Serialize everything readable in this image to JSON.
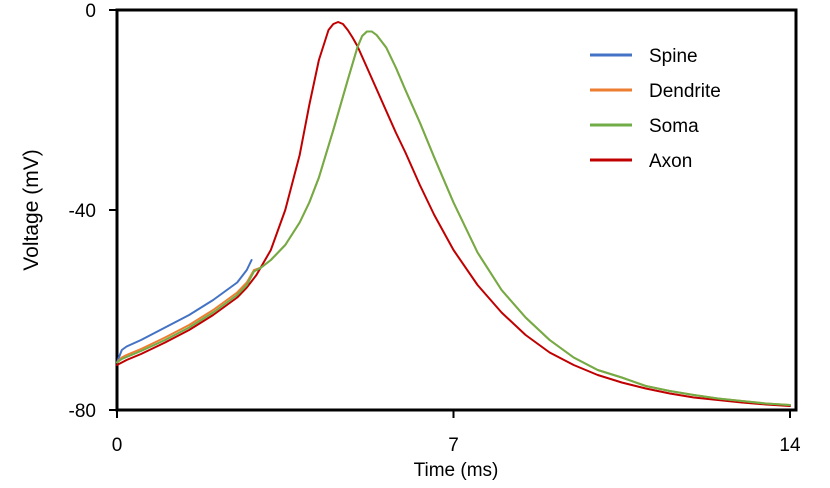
{
  "chart_data": {
    "type": "line",
    "title": "",
    "xlabel": "Time (ms)",
    "ylabel": "Voltage (mV)",
    "xlim": [
      0,
      14
    ],
    "ylim": [
      -80,
      0
    ],
    "xticks": [
      "0",
      "7",
      "14"
    ],
    "yticks": [
      "0",
      "-40",
      "-80"
    ],
    "grid": false,
    "legend_position": "top-right",
    "series": [
      {
        "name": "Spine",
        "color": "#4472C4",
        "x": [
          0.0,
          0.1,
          0.2,
          0.5,
          1.0,
          1.5,
          2.0,
          2.5,
          2.7,
          2.8
        ],
        "y": [
          -70.5,
          -68.0,
          -67.3,
          -66.0,
          -63.5,
          -61.0,
          -58.0,
          -54.5,
          -52.0,
          -50.0
        ]
      },
      {
        "name": "Dendrite",
        "color": "#ED7D31",
        "x": [
          0.0,
          0.1,
          0.2,
          0.5,
          1.0,
          1.5,
          2.0,
          2.5,
          2.7,
          2.85,
          3.0,
          3.2,
          3.5,
          3.8,
          4.0,
          4.2,
          4.5,
          4.8,
          5.0,
          5.1,
          5.2,
          5.3,
          5.4,
          5.6,
          5.8,
          6.0,
          6.3,
          6.6,
          7.0,
          7.5,
          8.0,
          8.5,
          9.0,
          9.5,
          10.0,
          10.5,
          11.0,
          11.5,
          12.0,
          12.5,
          13.0,
          13.5,
          14.0
        ],
        "y": [
          -70.5,
          -69.5,
          -69.0,
          -67.8,
          -65.5,
          -63.0,
          -60.0,
          -56.5,
          -54.5,
          -52.0,
          -51.5,
          -50.0,
          -47.0,
          -42.5,
          -38.5,
          -33.5,
          -24.0,
          -14.0,
          -7.5,
          -5.2,
          -4.3,
          -4.3,
          -5.0,
          -7.5,
          -11.5,
          -16.0,
          -22.5,
          -29.5,
          -38.5,
          -48.5,
          -56.0,
          -61.5,
          -66.0,
          -69.5,
          -72.0,
          -73.5,
          -75.2,
          -76.2,
          -77.0,
          -77.7,
          -78.2,
          -78.7,
          -79.0
        ]
      },
      {
        "name": "Soma",
        "color": "#70AD47",
        "x": [
          0.0,
          0.1,
          0.2,
          0.5,
          1.0,
          1.5,
          2.0,
          2.5,
          2.7,
          2.85,
          3.0,
          3.2,
          3.5,
          3.8,
          4.0,
          4.2,
          4.5,
          4.8,
          5.0,
          5.1,
          5.2,
          5.3,
          5.4,
          5.6,
          5.8,
          6.0,
          6.3,
          6.6,
          7.0,
          7.5,
          8.0,
          8.5,
          9.0,
          9.5,
          10.0,
          10.5,
          11.0,
          11.5,
          12.0,
          12.5,
          13.0,
          13.5,
          14.0
        ],
        "y": [
          -70.5,
          -69.8,
          -69.4,
          -68.2,
          -66.0,
          -63.5,
          -60.5,
          -57.0,
          -55.0,
          -52.3,
          -51.5,
          -50.0,
          -47.0,
          -42.5,
          -38.5,
          -33.5,
          -24.0,
          -14.0,
          -7.5,
          -5.2,
          -4.3,
          -4.3,
          -5.0,
          -7.5,
          -11.5,
          -16.0,
          -22.5,
          -29.5,
          -38.5,
          -48.5,
          -56.0,
          -61.5,
          -66.0,
          -69.5,
          -72.0,
          -73.5,
          -75.2,
          -76.2,
          -77.0,
          -77.7,
          -78.2,
          -78.7,
          -79.0
        ]
      },
      {
        "name": "Axon",
        "color": "#C00000",
        "x": [
          0.0,
          0.1,
          0.2,
          0.5,
          1.0,
          1.5,
          2.0,
          2.5,
          2.7,
          2.9,
          3.2,
          3.5,
          3.8,
          4.0,
          4.2,
          4.4,
          4.5,
          4.6,
          4.7,
          4.8,
          4.9,
          5.0,
          5.2,
          5.5,
          5.8,
          6.0,
          6.3,
          6.6,
          7.0,
          7.5,
          8.0,
          8.5,
          9.0,
          9.5,
          10.0,
          10.5,
          11.0,
          11.5,
          12.0,
          12.5,
          13.0,
          13.5,
          14.0
        ],
        "y": [
          -71.0,
          -70.5,
          -70.0,
          -68.8,
          -66.5,
          -64.0,
          -61.0,
          -57.5,
          -55.5,
          -53.0,
          -48.0,
          -40.0,
          -29.0,
          -19.0,
          -10.0,
          -4.0,
          -2.8,
          -2.4,
          -2.8,
          -4.0,
          -5.5,
          -7.2,
          -11.5,
          -18.0,
          -24.5,
          -28.5,
          -35.0,
          -41.0,
          -48.0,
          -55.0,
          -60.5,
          -65.0,
          -68.5,
          -71.0,
          -73.0,
          -74.5,
          -75.7,
          -76.7,
          -77.5,
          -78.0,
          -78.5,
          -78.9,
          -79.2
        ]
      }
    ]
  }
}
